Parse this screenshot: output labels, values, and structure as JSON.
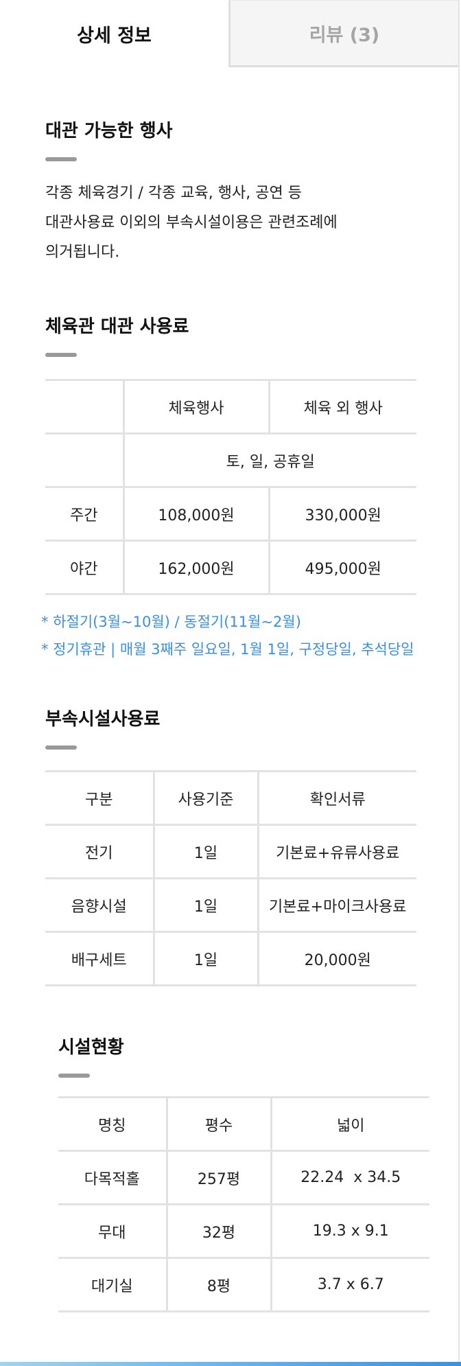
{
  "tabs": [
    {
      "label": "상세 정보"
    },
    {
      "label": "리뷰 (3)"
    }
  ],
  "rental_events": {
    "title": "대관 가능한 행사",
    "lines": [
      "각종 체육경기 / 각종 교육, 행사, 공연 등",
      "대관사용료 이외의 부속시설이용은 관련조례에",
      "의거됩니다."
    ]
  },
  "gym_fee": {
    "title": "체육관 대관 사용료",
    "header": [
      "",
      "체육행사",
      "체육 외 행사"
    ],
    "day_label": "토, 일, 공휴일",
    "rows": [
      {
        "label": "주간",
        "sports": "108,000원",
        "other": "330,000원"
      },
      {
        "label": "야간",
        "sports": "162,000원",
        "other": "495,000원"
      }
    ],
    "notes": [
      "* 하절기(3월~10월) / 동절기(11월~2월)",
      "* 정기휴관 | 매월 3째주 일요일, 1월 1일, 구정당일, 추석당일"
    ]
  },
  "facility_fee": {
    "title": "부속시설사용료",
    "header": [
      "구분",
      "사용기준",
      "확인서류"
    ],
    "rows": [
      [
        "전기",
        "1일",
        "기본료+유류사용료"
      ],
      [
        "음향시설",
        "1일",
        "기본료+마이크사용료"
      ],
      [
        "배구세트",
        "1일",
        "20,000원"
      ]
    ]
  },
  "facility_status": {
    "title": "시설현황",
    "header": [
      "명칭",
      "평수",
      "넓이"
    ],
    "rows": [
      [
        "다목적홀",
        "257평",
        "22.24  x 34.5"
      ],
      [
        "무대",
        "32평",
        "19.3 x 9.1"
      ],
      [
        "대기실",
        "8평",
        "3.7 x 6.7"
      ]
    ]
  },
  "colors": {
    "note_blue": "#3b8fe0",
    "title_bar": "#999999",
    "table_line": "#e2e2e2"
  }
}
